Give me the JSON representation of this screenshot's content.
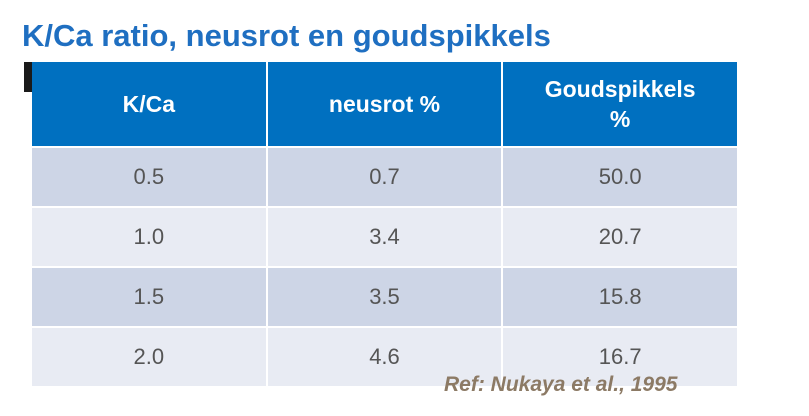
{
  "header": {
    "title": "K/Ca ratio, neusrot en goudspikkels"
  },
  "table": {
    "columns": [
      "K/Ca",
      "neusrot %",
      "Goudspikkels %"
    ],
    "rows": [
      [
        "0.5",
        "0.7",
        "50.0"
      ],
      [
        "1.0",
        "3.4",
        "20.7"
      ],
      [
        "1.5",
        "3.5",
        "15.8"
      ],
      [
        "2.0",
        "4.6",
        "16.7"
      ]
    ]
  },
  "footer": {
    "reference": "Ref: Nukaya  et al., 1995"
  }
}
